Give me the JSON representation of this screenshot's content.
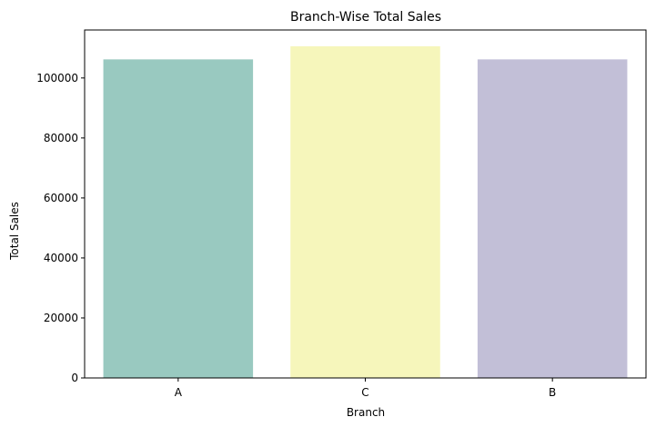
{
  "chart_data": {
    "type": "bar",
    "title": "Branch-Wise Total Sales",
    "xlabel": "Branch",
    "ylabel": "Total Sales",
    "categories": [
      "A",
      "C",
      "B"
    ],
    "values": [
      106200,
      110568,
      106198
    ],
    "colors": [
      "#99c9c0",
      "#f6f6bb",
      "#c2bfd7"
    ],
    "ylim": [
      0,
      116000
    ],
    "yticks": [
      0,
      20000,
      40000,
      60000,
      80000,
      100000
    ],
    "grid": false,
    "legend": "none"
  }
}
